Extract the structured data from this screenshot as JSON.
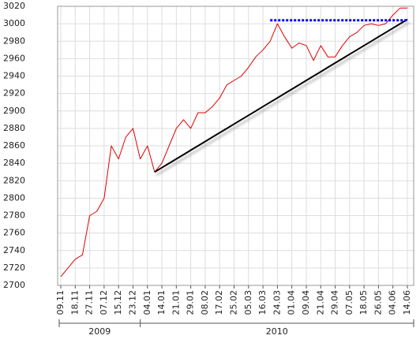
{
  "chart_data": {
    "type": "line",
    "categories": [
      "09.11",
      null,
      "18.11",
      null,
      "27.11",
      null,
      "07.12",
      null,
      "15.12",
      null,
      "23.12",
      null,
      "04.01",
      null,
      "14.01",
      null,
      "21.01",
      null,
      "29.01",
      null,
      "08.02",
      null,
      "17.02",
      null,
      "25.02",
      null,
      "05.03",
      null,
      "16.03",
      null,
      "24.03",
      null,
      "01.04",
      null,
      "09.04",
      null,
      "21.04",
      null,
      "29.04",
      null,
      "07.05",
      null,
      "18.05",
      null,
      "26.05",
      null,
      "04.06",
      null,
      "14.06"
    ],
    "series": [
      {
        "color": "#e00000",
        "values": [
          2710,
          2720,
          2730,
          2735,
          2780,
          2785,
          2800,
          2860,
          2845,
          2870,
          2880,
          2845,
          2860,
          2830,
          2840,
          2860,
          2880,
          2890,
          2880,
          2898,
          2898,
          2905,
          2915,
          2930,
          2935,
          2940,
          2950,
          2962,
          2970,
          2980,
          3000,
          2985,
          2972,
          2978,
          2975,
          2958,
          2975,
          2962,
          2962,
          2975,
          2985,
          2990,
          2998,
          3000,
          2998,
          3000,
          3010,
          3018,
          3018
        ]
      },
      {
        "color": "#000000",
        "values": [
          null,
          null,
          null,
          null,
          null,
          null,
          null,
          null,
          null,
          null,
          null,
          null,
          null,
          2830,
          2835,
          2840,
          2845,
          2850,
          2855,
          2860,
          2865,
          2870,
          2875,
          2880,
          2885,
          2890,
          2895,
          2900,
          2905,
          2910,
          2915,
          2920,
          2925,
          2930,
          2935,
          2940,
          2945,
          2950,
          2955,
          2960,
          2965,
          2970,
          2975,
          2980,
          2985,
          2990,
          2995,
          3000,
          3005
        ]
      },
      {
        "color": "#0000ee",
        "dash": "dotted",
        "values": [
          null,
          null,
          null,
          null,
          null,
          null,
          null,
          null,
          null,
          null,
          null,
          null,
          null,
          null,
          null,
          null,
          null,
          null,
          null,
          null,
          null,
          null,
          null,
          null,
          null,
          null,
          null,
          null,
          null,
          3004,
          3004,
          3004,
          3004,
          3004,
          3004,
          3004,
          3004,
          3004,
          3004,
          3004,
          3004,
          3004,
          3004,
          3004,
          3004,
          3004,
          3004,
          3004,
          3004
        ]
      }
    ],
    "years": [
      "2009",
      "2010"
    ],
    "ylim": [
      2700,
      3020
    ],
    "yticks": [
      2700,
      2720,
      2740,
      2760,
      2780,
      2800,
      2820,
      2840,
      2860,
      2880,
      2900,
      2920,
      2940,
      2960,
      2980,
      3000,
      3020
    ],
    "grid": true
  }
}
